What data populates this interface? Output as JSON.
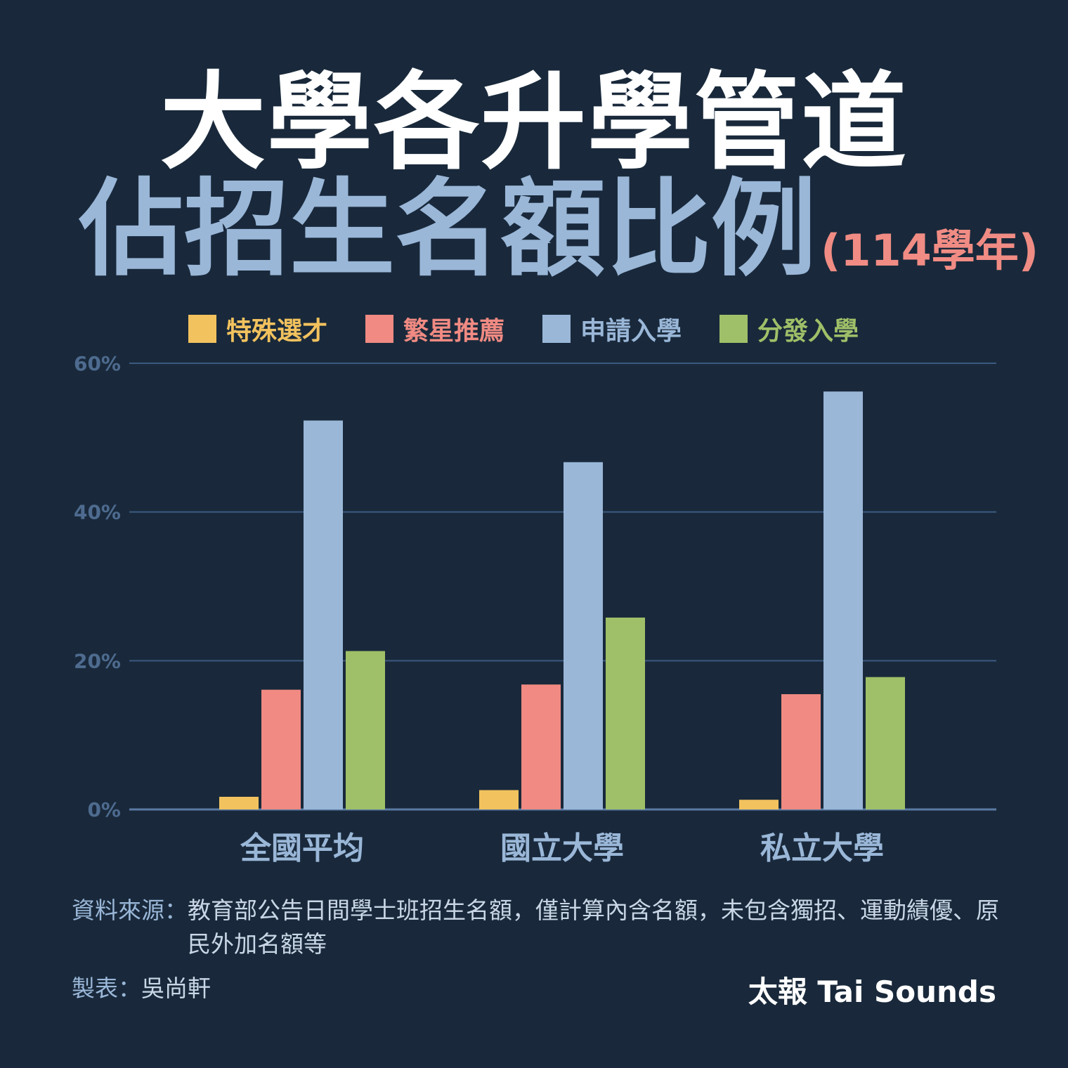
{
  "title": {
    "line1": "大學各升學管道",
    "line2": "佔招生名額比例",
    "year": "(114學年)"
  },
  "chart_data": {
    "type": "bar",
    "categories": [
      "全國平均",
      "國立大學",
      "私立大學"
    ],
    "series": [
      {
        "name": "特殊選才",
        "color": "#f2c25e",
        "values": [
          1.7,
          2.6,
          1.3
        ]
      },
      {
        "name": "繁星推薦",
        "color": "#f08a82",
        "values": [
          16.1,
          16.8,
          15.5
        ]
      },
      {
        "name": "申請入學",
        "color": "#9ab7d8",
        "values": [
          52.3,
          46.7,
          56.2
        ]
      },
      {
        "name": "分發入學",
        "color": "#9fc068",
        "values": [
          21.3,
          25.8,
          17.8
        ]
      }
    ],
    "yticks": [
      "0%",
      "20%",
      "40%",
      "60%"
    ],
    "ylim": [
      0,
      60
    ],
    "grid": true,
    "legend": "top"
  },
  "footer": {
    "source_label": "資料來源：",
    "source_text": "教育部公告日間學士班招生名額，僅計算內含名額，未包含獨招、運動績優、原民外加名額等",
    "maker_label": "製表：",
    "maker_name": "吳尚軒",
    "brand": "太報 Tai Sounds"
  }
}
